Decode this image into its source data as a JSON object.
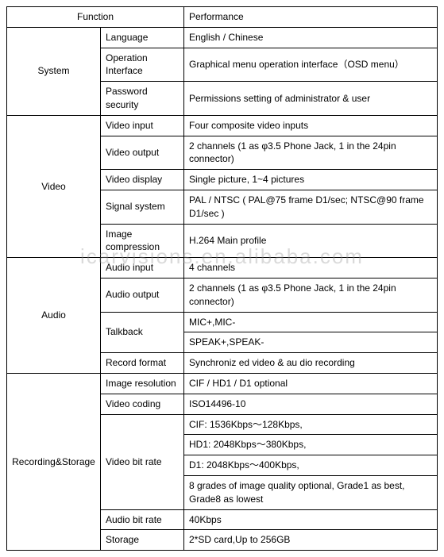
{
  "header": {
    "function": "Function",
    "performance": "Performance"
  },
  "watermark": "icarvisions.en.alibaba.com",
  "sections": [
    {
      "category": "System",
      "rows": [
        {
          "label": "Language",
          "value": "English / Chinese"
        },
        {
          "label": "Operation Interface",
          "value": "Graphical menu operation interface（OSD menu）"
        },
        {
          "label": "Password security",
          "value": "Permissions setting of administrator & user"
        }
      ]
    },
    {
      "category": "Video",
      "rows": [
        {
          "label": "Video input",
          "value": "Four composite video inputs"
        },
        {
          "label": "Video output",
          "value": "2 channels (1 as φ3.5 Phone Jack, 1 in the 24pin connector)"
        },
        {
          "label": "Video display",
          "value": "Single picture, 1~4 pictures"
        },
        {
          "label": "Signal system",
          "value": "PAL / NTSC ( PAL@75 frame D1/sec; NTSC@90 frame D1/sec )"
        },
        {
          "label": "Image compression",
          "value": "H.264 Main profile"
        }
      ]
    },
    {
      "category": "Audio",
      "rows": [
        {
          "label": "Audio input",
          "value": "4 channels"
        },
        {
          "label": "Audio output",
          "value": "2 channels (1 as φ3.5 Phone Jack, 1 in the 24pin connector)"
        },
        {
          "label": "Talkback",
          "value": "MIC+,MIC-",
          "rowspan": 2
        },
        {
          "value": "SPEAK+,SPEAK-"
        },
        {
          "label": "Record format",
          "value": "Synchroniz ed video & au dio recording"
        }
      ]
    },
    {
      "category": "Recording&Storage",
      "rows": [
        {
          "label": "Image resolution",
          "value": "CIF / HD1 / D1 optional"
        },
        {
          "label": "Video coding",
          "value": "ISO14496-10"
        },
        {
          "label": "Video bit rate",
          "value": "CIF: 1536Kbps～128Kbps,",
          "rowspan": 4
        },
        {
          "value": "HD1: 2048Kbps～380Kbps,"
        },
        {
          "value": "D1: 2048Kbps～400Kbps,"
        },
        {
          "value": "8 grades of image quality optional, Grade1 as best, Grade8 as lowest"
        },
        {
          "label": "Audio bit rate",
          "value": "40Kbps"
        },
        {
          "label": "Storage",
          "value": "2*SD card,Up to 256GB"
        }
      ]
    }
  ]
}
